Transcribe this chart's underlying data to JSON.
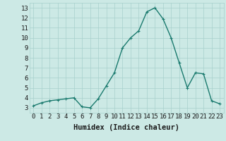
{
  "x": [
    0,
    1,
    2,
    3,
    4,
    5,
    6,
    7,
    8,
    9,
    10,
    11,
    12,
    13,
    14,
    15,
    16,
    17,
    18,
    19,
    20,
    21,
    22,
    23
  ],
  "y": [
    3.2,
    3.5,
    3.7,
    3.8,
    3.9,
    4.0,
    3.1,
    3.0,
    3.9,
    5.2,
    6.5,
    9.0,
    10.0,
    10.7,
    12.6,
    13.0,
    11.9,
    10.0,
    7.5,
    5.0,
    6.5,
    6.4,
    3.7,
    3.4
  ],
  "line_color": "#1a7a6e",
  "marker": "+",
  "marker_size": 3,
  "bg_color": "#cce9e5",
  "grid_color": "#a8d0cc",
  "xlabel": "Humidex (Indice chaleur)",
  "xlim": [
    -0.5,
    23.5
  ],
  "ylim": [
    2.5,
    13.5
  ],
  "yticks": [
    3,
    4,
    5,
    6,
    7,
    8,
    9,
    10,
    11,
    12,
    13
  ],
  "xticks": [
    0,
    1,
    2,
    3,
    4,
    5,
    6,
    7,
    8,
    9,
    10,
    11,
    12,
    13,
    14,
    15,
    16,
    17,
    18,
    19,
    20,
    21,
    22,
    23
  ],
  "xlabel_fontsize": 7.5,
  "tick_fontsize": 6.5,
  "line_width": 1.0
}
